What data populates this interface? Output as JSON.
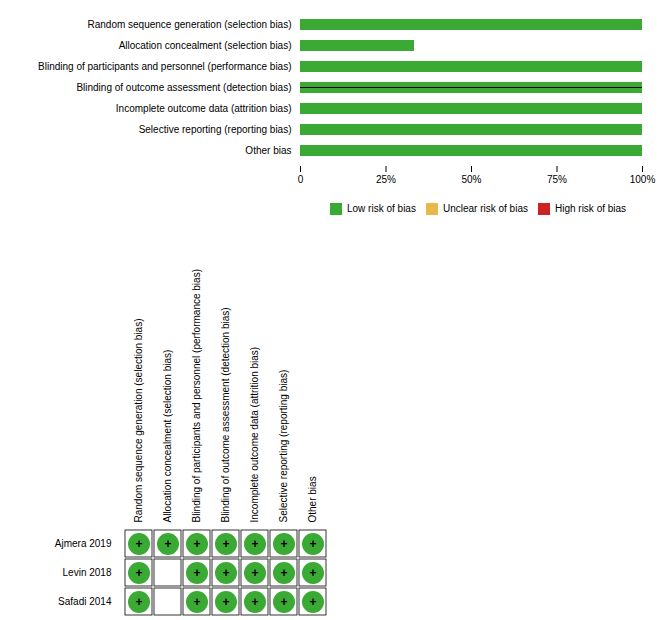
{
  "chart_data": [
    {
      "type": "bar",
      "orientation": "horizontal",
      "stacked": true,
      "categories": [
        "Random sequence generation (selection bias)",
        "Allocation concealment (selection bias)",
        "Blinding of participants and personnel (performance bias)",
        "Blinding of outcome assessment (detection bias)",
        "Incomplete outcome data (attrition bias)",
        "Selective reporting (reporting bias)",
        "Other bias"
      ],
      "series": [
        {
          "name": "Low risk of bias",
          "color": "#3aaa35",
          "values": [
            100,
            33.33,
            100,
            100,
            100,
            100,
            100
          ]
        },
        {
          "name": "Unclear risk of bias",
          "color": "#e8b84b",
          "values": [
            0,
            0,
            0,
            0,
            0,
            0,
            0
          ]
        },
        {
          "name": "High risk of bias",
          "color": "#cc2222",
          "values": [
            0,
            0,
            0,
            0,
            0,
            0,
            0
          ]
        }
      ],
      "xlim": [
        0,
        100
      ],
      "xticks": [
        0,
        {
          "value": 25,
          "label": "25%"
        },
        {
          "value": 50,
          "label": "50%"
        },
        {
          "value": 75,
          "label": "75%"
        },
        {
          "value": 100,
          "label": "100%"
        }
      ],
      "legend": "bottom",
      "grid": false
    },
    {
      "type": "matrix",
      "x": [
        "Random sequence generation (selection bias)",
        "Allocation concealment (selection bias)",
        "Blinding of participants and personnel (performance bias)",
        "Blinding of outcome assessment (detection bias)",
        "Incomplete outcome data (attrition bias)",
        "Selective reporting (reporting bias)",
        "Other bias"
      ],
      "categories": [
        "Ajmera 2019",
        "Levin 2018",
        "Safadi 2014"
      ],
      "values": [
        [
          "low",
          "low",
          "low",
          "low",
          "low",
          "low",
          "low"
        ],
        [
          "low",
          null,
          "low",
          "low",
          "low",
          "low",
          "low"
        ],
        [
          "low",
          null,
          "low",
          "low",
          "low",
          "low",
          "low"
        ]
      ],
      "value_labels": [
        [
          "+",
          "+",
          "+",
          "+",
          "+",
          "+",
          "+"
        ],
        [
          "+",
          null,
          "+",
          "+",
          "+",
          "+",
          "+"
        ],
        [
          "+",
          null,
          "+",
          "+",
          "+",
          "+",
          "+"
        ]
      ],
      "colors": [
        [
          "#3aaa35",
          "#3aaa35",
          "#3aaa35",
          "#3aaa35",
          "#3aaa35",
          "#3aaa35",
          "#3aaa35"
        ],
        [
          "#3aaa35",
          null,
          "#3aaa35",
          "#3aaa35",
          "#3aaa35",
          "#3aaa35",
          "#3aaa35"
        ],
        [
          "#3aaa35",
          null,
          "#3aaa35",
          "#3aaa35",
          "#3aaa35",
          "#3aaa35",
          "#3aaa35"
        ]
      ]
    }
  ]
}
